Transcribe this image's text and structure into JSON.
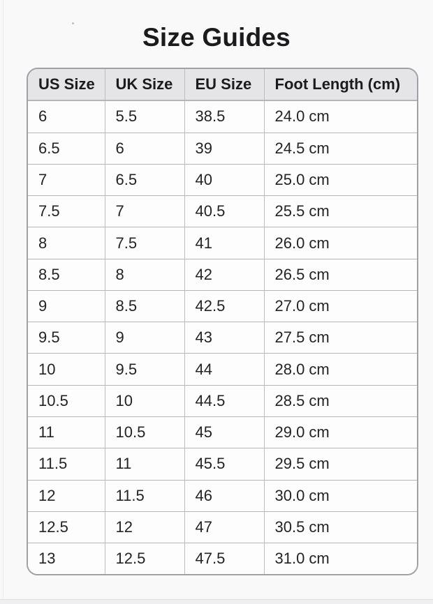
{
  "page": {
    "title": "Size Guides"
  },
  "size_table": {
    "headers": [
      "US Size",
      "UK Size",
      "EU Size",
      "Foot Length (cm)"
    ],
    "rows": [
      [
        "6",
        "5.5",
        "38.5",
        "24.0 cm"
      ],
      [
        "6.5",
        "6",
        "39",
        "24.5 cm"
      ],
      [
        "7",
        "6.5",
        "40",
        "25.0 cm"
      ],
      [
        "7.5",
        "7",
        "40.5",
        "25.5 cm"
      ],
      [
        "8",
        "7.5",
        "41",
        "26.0 cm"
      ],
      [
        "8.5",
        "8",
        "42",
        "26.5 cm"
      ],
      [
        "9",
        "8.5",
        "42.5",
        "27.0 cm"
      ],
      [
        "9.5",
        "9",
        "43",
        "27.5 cm"
      ],
      [
        "10",
        "9.5",
        "44",
        "28.0 cm"
      ],
      [
        "10.5",
        "10",
        "44.5",
        "28.5 cm"
      ],
      [
        "11",
        "10.5",
        "45",
        "29.0 cm"
      ],
      [
        "11.5",
        "11",
        "45.5",
        "29.5 cm"
      ],
      [
        "12",
        "11.5",
        "46",
        "30.0 cm"
      ],
      [
        "12.5",
        "12",
        "47",
        "30.5 cm"
      ],
      [
        "13",
        "12.5",
        "47.5",
        "31.0 cm"
      ]
    ]
  },
  "colors": {
    "page_background": "#f9f9fa",
    "header_background": "#e5e5e8",
    "cell_background": "#fdfdfd",
    "outer_border": "#a0a0a6",
    "inner_border": "#bcbcc1",
    "row_border": "#b4b4b9",
    "text_color": "#232325",
    "title_color": "#1b1b1d"
  }
}
